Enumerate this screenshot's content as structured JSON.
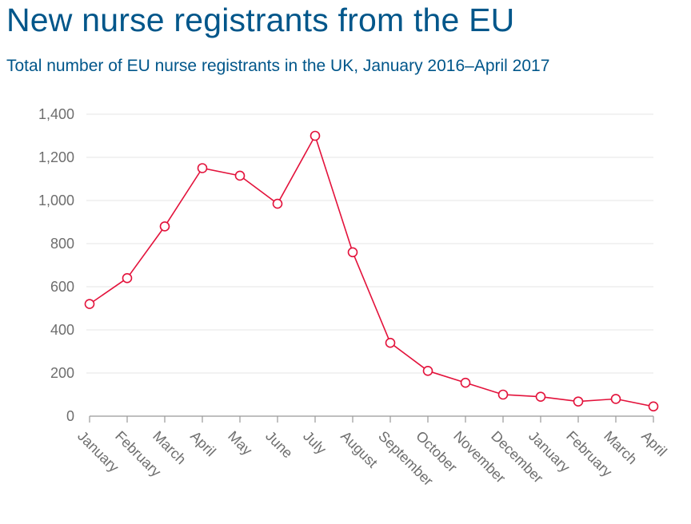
{
  "title": "New nurse registrants from the EU",
  "subtitle": "Total number of EU nurse registrants in the UK, January 2016–April 2017",
  "colors": {
    "title": "#00568a",
    "line": "#e3123b",
    "axis": "#999999",
    "grid": "#e6e6e6",
    "tick_text": "#6e6e6e"
  },
  "chart_data": {
    "type": "line",
    "title": "New nurse registrants from the EU",
    "subtitle": "Total number of EU nurse registrants in the UK, January 2016–April 2017",
    "xlabel": "",
    "ylabel": "",
    "ylim": [
      0,
      1400
    ],
    "yticks": [
      0,
      200,
      400,
      600,
      800,
      1000,
      1200,
      1400
    ],
    "ytick_labels": [
      "0",
      "200",
      "400",
      "600",
      "800",
      "1,000",
      "1,200",
      "1,400"
    ],
    "grid": true,
    "legend": "none",
    "categories": [
      "January",
      "February",
      "March",
      "April",
      "May",
      "June",
      "July",
      "August",
      "September",
      "October",
      "November",
      "December",
      "January",
      "February",
      "March",
      "April"
    ],
    "series": [
      {
        "values": [
          520,
          640,
          880,
          1150,
          1115,
          985,
          1300,
          760,
          340,
          210,
          155,
          100,
          90,
          68,
          80,
          45
        ]
      }
    ]
  }
}
